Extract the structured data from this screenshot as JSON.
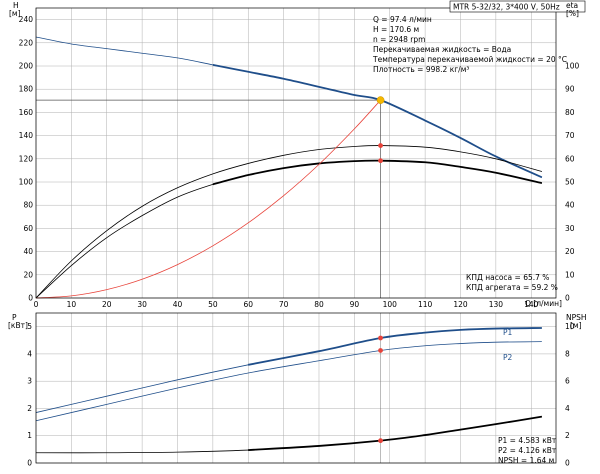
{
  "title": "MTR 5-32/32, 3*400 V, 50Hz",
  "info": {
    "lines": [
      "Q = 97.4 л/мин",
      "H = 170.6 м",
      "n = 2948 rpm",
      "Перекачиваемая жидкость = Вода",
      "Температура перекачиваемой жидкости = 20 °C",
      "Плотность = 998.2 кг/м³"
    ]
  },
  "eff_text": [
    "КПД насоса = 65.7 %",
    "КПД агрегата = 59.2 %"
  ],
  "power_text": [
    "P1 = 4.583 кВт",
    "P2 = 4.126 кВт",
    "NPSH = 1.64 м"
  ],
  "colors": {
    "blue": "#1f4e8a",
    "red": "#e8433a",
    "op_marker": "#f5b800",
    "black": "#000000",
    "grid": "#b0b0b0"
  },
  "chart_data": [
    {
      "type": "line",
      "xlabel": "Q [л/мин]",
      "ylabel": "H [м]",
      "y2label": "eta [%]",
      "xlim": [
        0,
        147
      ],
      "ylim": [
        0,
        250
      ],
      "y2lim": [
        0,
        125
      ],
      "x_ticks": [
        0,
        10,
        20,
        30,
        40,
        50,
        60,
        70,
        80,
        90,
        100,
        110,
        120,
        130,
        140
      ],
      "y_ticks": [
        0,
        20,
        40,
        60,
        80,
        100,
        120,
        140,
        160,
        180,
        200,
        220,
        240
      ],
      "y2_ticks": [
        0,
        10,
        20,
        30,
        40,
        50,
        60,
        70,
        80,
        90,
        100
      ],
      "grid": true,
      "series": [
        {
          "key": "head",
          "axis": "y",
          "color": "#1f4e8a",
          "x": [
            0,
            10,
            20,
            30,
            40,
            50,
            60,
            70,
            80,
            90,
            97.4,
            110,
            120,
            130,
            143
          ],
          "y": [
            225,
            219,
            215,
            211,
            207,
            201,
            195,
            189,
            182,
            175,
            170.6,
            153,
            138,
            122,
            104
          ],
          "thick_from": 41
        },
        {
          "key": "head_plain",
          "axis": "y",
          "color": "#000000",
          "x": [
            120,
            130,
            143
          ],
          "y": [
            112,
            110,
            109
          ],
          "hidden": true
        },
        {
          "key": "eta_pump",
          "axis": "y2",
          "color": "#000000",
          "x": [
            0,
            10,
            20,
            30,
            40,
            50,
            60,
            70,
            80,
            90,
            97.4,
            110,
            120,
            130,
            143
          ],
          "y": [
            0,
            16,
            29,
            39.5,
            47.5,
            53.5,
            58,
            61.5,
            64,
            65.3,
            65.7,
            65,
            63,
            60,
            54.5
          ],
          "thick_from": 999
        },
        {
          "key": "eta_unit",
          "axis": "y2",
          "color": "#000000",
          "x": [
            0,
            10,
            20,
            30,
            40,
            50,
            60,
            70,
            80,
            90,
            97.4,
            110,
            120,
            130,
            143
          ],
          "y": [
            0,
            14,
            26,
            35.5,
            43.5,
            49,
            53,
            56,
            58,
            59,
            59.2,
            58.5,
            56.5,
            54,
            49.5
          ],
          "thick_from": 41
        },
        {
          "key": "system",
          "axis": "y",
          "color": "#e8433a",
          "x": [
            0,
            10,
            20,
            30,
            40,
            50,
            60,
            70,
            80,
            90,
            97.4
          ],
          "y": [
            0,
            1.8,
            7.2,
            16.2,
            28.8,
            45,
            64.8,
            88.2,
            115.2,
            145.8,
            170.6
          ],
          "thick_from": 999
        }
      ],
      "operating_point": {
        "q": 97.4,
        "h": 170.6,
        "eta_pump": 65.7,
        "eta_unit": 59.2
      }
    },
    {
      "type": "line",
      "xlim": [
        0,
        147
      ],
      "ylabel": "P [кВт]",
      "y2label": "NPSH [м]",
      "ylim": [
        0,
        5.5
      ],
      "y2lim": [
        0,
        11
      ],
      "y_ticks": [
        0,
        1,
        2,
        3,
        4,
        5
      ],
      "y2_ticks": [
        0,
        2,
        4,
        6,
        8,
        10
      ],
      "grid": true,
      "series": [
        {
          "key": "p1",
          "name": "P1",
          "axis": "y",
          "color": "#1f4e8a",
          "x": [
            0,
            20,
            40,
            60,
            80,
            97.4,
            110,
            120,
            130,
            143
          ],
          "y": [
            1.85,
            2.45,
            3.05,
            3.6,
            4.1,
            4.583,
            4.78,
            4.88,
            4.93,
            4.95
          ],
          "thick_from": 41
        },
        {
          "key": "p2",
          "name": "P2",
          "axis": "y",
          "color": "#1f4e8a",
          "x": [
            0,
            20,
            40,
            60,
            80,
            97.4,
            110,
            120,
            130,
            143
          ],
          "y": [
            1.55,
            2.15,
            2.75,
            3.3,
            3.75,
            4.126,
            4.3,
            4.38,
            4.43,
            4.45
          ],
          "thick_from": 999
        },
        {
          "key": "npsh",
          "axis": "y2",
          "color": "#000000",
          "x": [
            0,
            20,
            40,
            60,
            80,
            97.4,
            110,
            120,
            130,
            143
          ],
          "y": [
            0.75,
            0.75,
            0.8,
            0.95,
            1.25,
            1.64,
            2.05,
            2.45,
            2.85,
            3.4
          ],
          "thick_from": 41
        }
      ],
      "operating_point": {
        "q": 97.4,
        "p1": 4.583,
        "p2": 4.126,
        "npsh": 1.64
      }
    }
  ]
}
